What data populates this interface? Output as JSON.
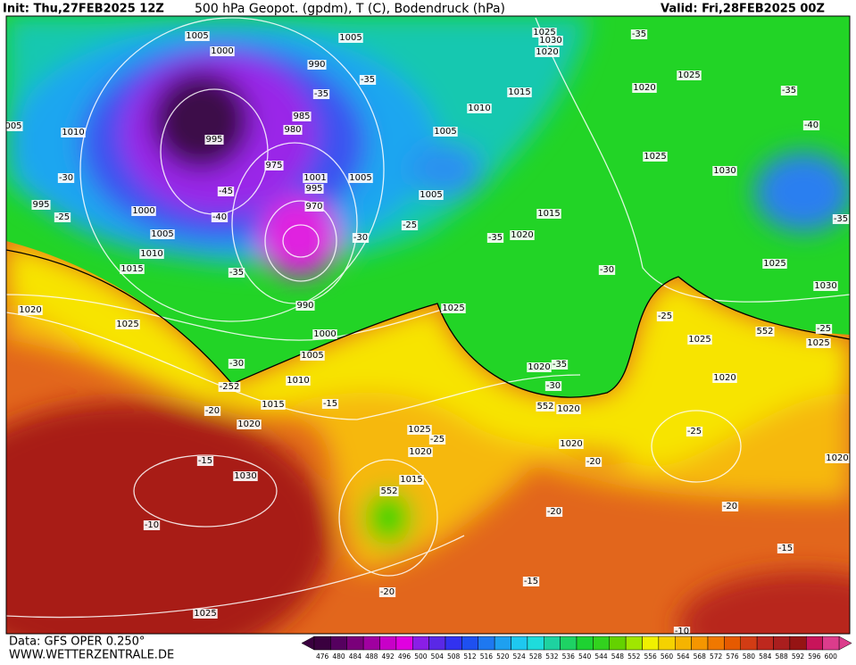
{
  "header": {
    "init": "Init: Thu,27FEB2025 12Z",
    "title": "500 hPa Geopot. (gpdm), T (C), Bodendruck (hPa)",
    "valid": "Valid: Fri,28FEB2025 00Z"
  },
  "footer": {
    "data": "Data: GFS OPER 0.250°",
    "site": "WWW.WETTERZENTRALE.DE"
  },
  "colorbar": {
    "labels": [
      "476",
      "480",
      "484",
      "488",
      "492",
      "496",
      "500",
      "504",
      "508",
      "512",
      "516",
      "520",
      "524",
      "528",
      "532",
      "536",
      "540",
      "544",
      "548",
      "552",
      "556",
      "560",
      "564",
      "568",
      "572",
      "576",
      "580",
      "584",
      "588",
      "592",
      "596",
      "600"
    ],
    "colors": [
      "#3a003f",
      "#55005f",
      "#7a007a",
      "#a000a0",
      "#c800c8",
      "#e000e0",
      "#8a1ee6",
      "#5a28e6",
      "#3232f0",
      "#1e50f0",
      "#1e78f0",
      "#1ea0f0",
      "#1ec8f0",
      "#1edcdc",
      "#1ed2a0",
      "#1ed264",
      "#1ed232",
      "#32d21e",
      "#64d200",
      "#a0e600",
      "#f0f000",
      "#f5d200",
      "#f5b400",
      "#f59600",
      "#f07800",
      "#e65a00",
      "#d23c14",
      "#be281e",
      "#aa1e1e",
      "#961414",
      "#c8145a",
      "#dc3c8c"
    ]
  },
  "map": {
    "labels": [
      "1005",
      "1000",
      "1005",
      "990",
      "1025",
      "1030",
      "-35",
      "1020",
      "1025",
      "1015",
      "1020",
      "-35",
      "-35",
      "-35",
      "1010",
      "985",
      "980",
      "1005",
      "1010",
      "005",
      "995",
      "-40",
      "1025",
      "975",
      "1030",
      "1001",
      "1005",
      "-30",
      "-45",
      "995",
      "1005",
      "970",
      "995",
      "-25",
      "1000",
      "-40",
      "1015",
      "-25",
      "-35",
      "1005",
      "-30",
      "-35",
      "1020",
      "1010",
      "1025",
      "-30",
      "1015",
      "-35",
      "1030",
      "990",
      "1020",
      "1025",
      "-25",
      "552",
      "-25",
      "1025",
      "1000",
      "1025",
      "1025",
      "1005",
      "-30",
      "1020",
      "-35",
      "1020",
      "1010",
      "-252",
      "-30",
      "1015",
      "-15",
      "552",
      "1020",
      "-20",
      "1020",
      "1025",
      "-25",
      "-25",
      "1020",
      "1020",
      "-15",
      "-20",
      "1020",
      "1030",
      "1015",
      "552",
      "-20",
      "-20",
      "-10",
      "-15",
      "-15",
      "-20",
      "1025",
      "-10"
    ]
  }
}
